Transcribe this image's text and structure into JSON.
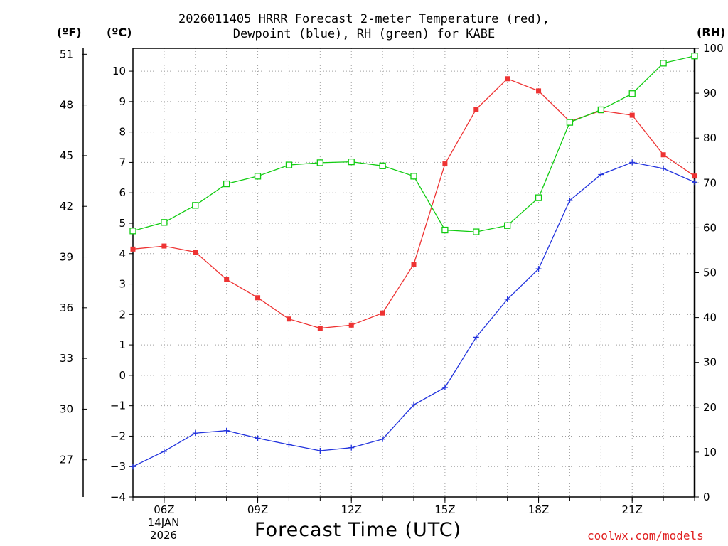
{
  "chart_data": {
    "type": "line",
    "title": "2026011405 HRRR Forecast 2-meter Temperature (red),",
    "subtitle": "Dewpoint (blue), RH (green) for KABE",
    "xlabel": "Forecast Time (UTC)",
    "units": {
      "fahrenheit": "(ºF)",
      "celsius": "(ºC)",
      "rh": "(RH)"
    },
    "date_label": {
      "day": "14JAN",
      "year": "2026"
    },
    "credit": "coolwx.com/models",
    "x_hours": [
      5,
      6,
      7,
      8,
      9,
      10,
      11,
      12,
      13,
      14,
      15,
      16,
      17,
      18,
      19,
      20,
      21,
      22,
      23
    ],
    "xlim": [
      5,
      23
    ],
    "x_ticks": [
      {
        "value": 6,
        "label": "06Z"
      },
      {
        "value": 9,
        "label": "09Z"
      },
      {
        "value": 12,
        "label": "12Z"
      },
      {
        "value": 15,
        "label": "15Z"
      },
      {
        "value": 18,
        "label": "18Z"
      },
      {
        "value": 21,
        "label": "21Z"
      }
    ],
    "ylim_celsius": [
      -4,
      10.75
    ],
    "yticks_celsius": [
      "-4",
      "-3",
      "-2",
      "-1",
      "0",
      "1",
      "2",
      "3",
      "4",
      "5",
      "6",
      "7",
      "8",
      "9",
      "10"
    ],
    "yticks_fahrenheit": [
      "27",
      "30",
      "33",
      "36",
      "39",
      "42",
      "45",
      "48",
      "51"
    ],
    "ylim_rh": [
      0,
      100
    ],
    "yticks_rh": [
      "0",
      "10",
      "20",
      "30",
      "40",
      "50",
      "60",
      "70",
      "80",
      "90",
      "100"
    ],
    "series": [
      {
        "name": "Temperature",
        "axis": "celsius",
        "color": "#ee3333",
        "marker": "filled-square",
        "values": [
          4.15,
          4.25,
          4.05,
          3.15,
          2.55,
          1.85,
          1.55,
          1.65,
          2.05,
          3.65,
          6.95,
          8.75,
          9.75,
          9.35,
          8.35,
          8.7,
          8.55,
          7.25,
          6.55
        ]
      },
      {
        "name": "Dewpoint",
        "axis": "celsius",
        "color": "#2233dd",
        "marker": "plus",
        "values": [
          -3.0,
          -2.5,
          -1.9,
          -1.82,
          -2.07,
          -2.28,
          -2.48,
          -2.38,
          -2.1,
          -0.97,
          -0.4,
          1.25,
          2.5,
          3.5,
          5.75,
          6.6,
          7.0,
          6.8,
          6.35
        ]
      },
      {
        "name": "RH",
        "axis": "rh",
        "color": "#11cc11",
        "marker": "open-square",
        "values": [
          59.3,
          61.2,
          65.0,
          69.8,
          71.5,
          74.0,
          74.5,
          74.7,
          73.8,
          71.5,
          59.5,
          59.1,
          60.5,
          66.7,
          83.5,
          86.3,
          89.9,
          96.7,
          98.3
        ]
      }
    ]
  }
}
